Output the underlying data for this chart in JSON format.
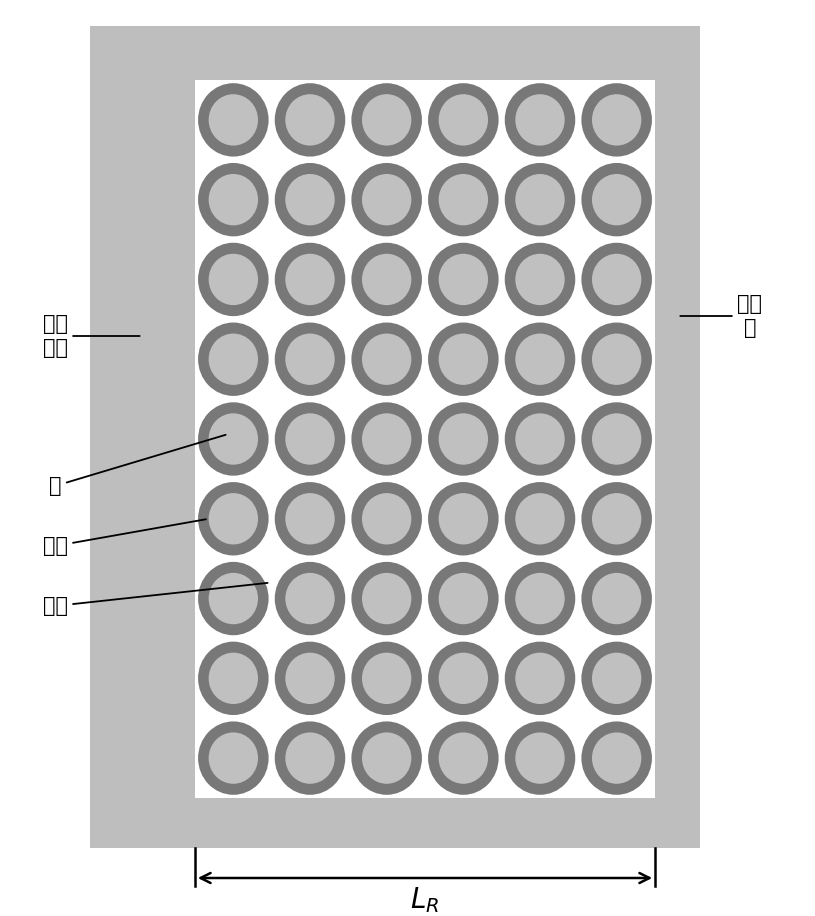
{
  "bg_color": "#ffffff",
  "frame_color": "#bebebe",
  "white_area_color": "#ffffff",
  "coil_outer_color": "#787878",
  "coil_inner_color": "#c0c0c0",
  "n_cols": 6,
  "n_rows": 9,
  "label_skeleton": "线圈\n骨架",
  "label_copper": "铜",
  "label_lacquer": "漆层",
  "label_air": "空气",
  "label_encap": "包封\n层",
  "label_LR": "$L_R$",
  "text_color": "#000000",
  "fontsize_label": 15,
  "fontsize_LR": 20
}
